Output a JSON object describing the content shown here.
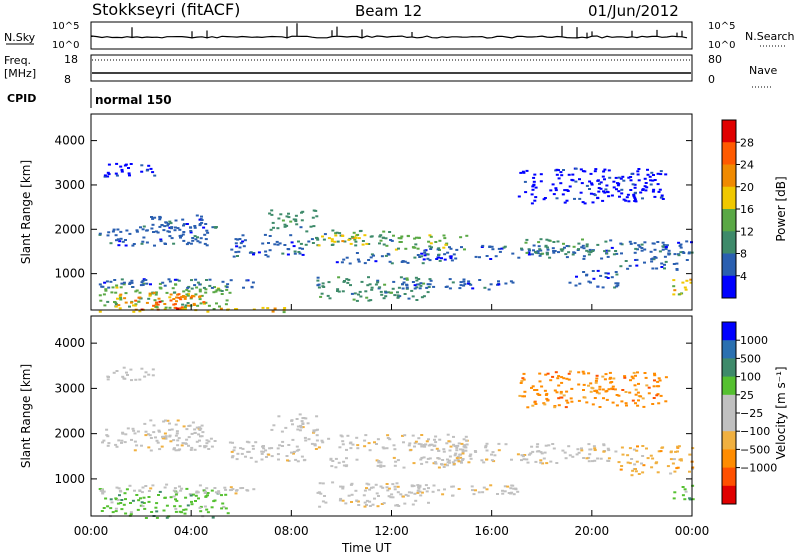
{
  "header": {
    "station": "Stokkseyri (fitACF)",
    "beam": "Beam 12",
    "date": "01/Jun/2012"
  },
  "top_panel": {
    "nsky_label": "N.Sky",
    "nsearch_label": "N.Search",
    "left_ticks": [
      "10^5",
      "10^0"
    ],
    "right_ticks": [
      "10^5",
      "10^0"
    ],
    "freq_label": "Freq.",
    "freq_unit": "[MHz]",
    "freq_ticks": [
      "18",
      "8"
    ],
    "nave_label": "Nave",
    "nave_ticks": [
      "80",
      "0"
    ],
    "cpid_label": "CPID",
    "cpid_value": "normal 150"
  },
  "x_axis": {
    "label": "Time UT",
    "ticks": [
      "00:00",
      "04:00",
      "08:00",
      "12:00",
      "16:00",
      "20:00",
      "00:00"
    ]
  },
  "colors": {
    "power": [
      "#0000ff",
      "#2a5fb0",
      "#3e8a6a",
      "#5aa845",
      "#f0c800",
      "#f08a00",
      "#ff5a00",
      "#e00000"
    ],
    "velocity": [
      "#e00000",
      "#ff5000",
      "#ff8c00",
      "#f0b040",
      "#c0c0c0",
      "#c0c0c0",
      "#55c030",
      "#3e8a6a",
      "#2a70b0",
      "#0000ff"
    ]
  },
  "chart_data": [
    {
      "type": "heatmap",
      "panel": "power",
      "ylabel": "Slant Range [km]",
      "yticks": [
        1000,
        2000,
        3000,
        4000
      ],
      "ylim": [
        180,
        4600
      ],
      "xlim_hours": [
        0,
        24
      ],
      "colorbar_label": "Power [dB]",
      "colorbar_ticks": [
        4,
        8,
        12,
        16,
        20,
        24,
        28
      ],
      "colorbar_range": [
        0,
        32
      ],
      "bands": [
        {
          "t": [
            0.3,
            8.0
          ],
          "r": [
            150,
            250
          ],
          "level": 4
        },
        {
          "t": [
            0.3,
            5.5
          ],
          "r": [
            250,
            800
          ],
          "level": 3
        },
        {
          "t": [
            1.0,
            4.5
          ],
          "r": [
            300,
            600
          ],
          "level": 5
        },
        {
          "t": [
            1.8,
            3.6
          ],
          "r": [
            200,
            450
          ],
          "level": 6
        },
        {
          "t": [
            0.3,
            6.5
          ],
          "r": [
            700,
            900
          ],
          "level": 1
        },
        {
          "t": [
            0.3,
            5.0
          ],
          "r": [
            1650,
            2150
          ],
          "level": 1
        },
        {
          "t": [
            2.0,
            4.5
          ],
          "r": [
            1950,
            2350
          ],
          "level": 1
        },
        {
          "t": [
            5.5,
            8.5
          ],
          "r": [
            1400,
            1900
          ],
          "level": 1
        },
        {
          "t": [
            7.0,
            9.0
          ],
          "r": [
            2000,
            2450
          ],
          "level": 2
        },
        {
          "t": [
            8.5,
            12.0
          ],
          "r": [
            1650,
            2000
          ],
          "level": 2
        },
        {
          "t": [
            9.0,
            11.0
          ],
          "r": [
            1650,
            1900
          ],
          "level": 4
        },
        {
          "t": [
            12.0,
            15.0
          ],
          "r": [
            1550,
            1900
          ],
          "level": 3
        },
        {
          "t": [
            9.5,
            14.5
          ],
          "r": [
            1250,
            1500
          ],
          "level": 1
        },
        {
          "t": [
            9.0,
            13.5
          ],
          "r": [
            400,
            950
          ],
          "level": 2
        },
        {
          "t": [
            13.0,
            21.0
          ],
          "r": [
            1350,
            1650
          ],
          "level": 1
        },
        {
          "t": [
            17.0,
            21.0
          ],
          "r": [
            1450,
            1800
          ],
          "level": 2
        },
        {
          "t": [
            21.0,
            24.0
          ],
          "r": [
            1100,
            1750
          ],
          "level": 1
        },
        {
          "t": [
            19.0,
            21.0
          ],
          "r": [
            700,
            1100
          ],
          "level": 1
        },
        {
          "t": [
            23.2,
            24.0
          ],
          "r": [
            550,
            900
          ],
          "level": 4
        },
        {
          "t": [
            12.0,
            17.0
          ],
          "r": [
            650,
            900
          ],
          "level": 1
        },
        {
          "t": [
            0.5,
            2.5
          ],
          "r": [
            3200,
            3500
          ],
          "level": 0
        },
        {
          "t": [
            17.0,
            23.0
          ],
          "r": [
            2600,
            3400
          ],
          "level": 0
        }
      ]
    },
    {
      "type": "heatmap",
      "panel": "velocity",
      "ylabel": "Slant Range [km]",
      "yticks": [
        1000,
        2000,
        3000,
        4000
      ],
      "ylim": [
        180,
        4600
      ],
      "xlim_hours": [
        0,
        24
      ],
      "colorbar_label": "Velocity [m s⁻¹]",
      "colorbar_ticks": [
        -1000,
        -500,
        -100,
        -25,
        25,
        100,
        500,
        1000
      ],
      "colorbar_tick_labels": [
        "−1000",
        "−500",
        "−100",
        "−25",
        "25",
        "100",
        "500",
        "1000"
      ],
      "bands": [
        {
          "t": [
            0.3,
            5.5
          ],
          "r": [
            150,
            800
          ],
          "level": 6
        },
        {
          "t": [
            0.3,
            5.0
          ],
          "r": [
            1650,
            2150
          ],
          "level": 4
        },
        {
          "t": [
            2.0,
            4.5
          ],
          "r": [
            1950,
            2350
          ],
          "level": 4
        },
        {
          "t": [
            5.5,
            8.5
          ],
          "r": [
            1400,
            1900
          ],
          "level": 4
        },
        {
          "t": [
            7.0,
            9.0
          ],
          "r": [
            2000,
            2450
          ],
          "level": 4
        },
        {
          "t": [
            8.5,
            15.0
          ],
          "r": [
            1650,
            2000
          ],
          "level": 4
        },
        {
          "t": [
            9.5,
            14.5
          ],
          "r": [
            1250,
            1500
          ],
          "level": 4
        },
        {
          "t": [
            9.0,
            13.5
          ],
          "r": [
            400,
            950
          ],
          "level": 4
        },
        {
          "t": [
            13.0,
            21.0
          ],
          "r": [
            1350,
            1800
          ],
          "level": 4
        },
        {
          "t": [
            21.0,
            24.0
          ],
          "r": [
            1100,
            1750
          ],
          "level": 3
        },
        {
          "t": [
            23.2,
            24.0
          ],
          "r": [
            550,
            900
          ],
          "level": 6
        },
        {
          "t": [
            0.3,
            6.5
          ],
          "r": [
            700,
            900
          ],
          "level": 4
        },
        {
          "t": [
            12.0,
            17.0
          ],
          "r": [
            650,
            900
          ],
          "level": 4
        },
        {
          "t": [
            0.5,
            2.5
          ],
          "r": [
            3200,
            3500
          ],
          "level": 4
        },
        {
          "t": [
            17.0,
            23.0
          ],
          "r": [
            2600,
            3400
          ],
          "level": 2
        }
      ]
    }
  ]
}
